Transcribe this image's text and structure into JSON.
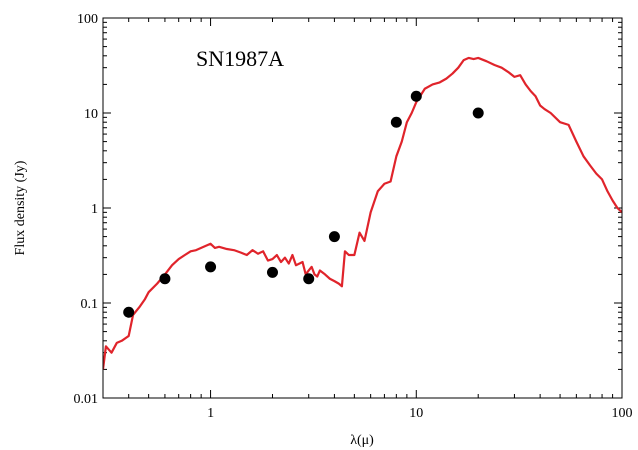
{
  "chart_data": {
    "type": "line",
    "title": "",
    "annotation": "SN1987A",
    "xlabel": "λ(μ)",
    "ylabel": "Flux density (Jy)",
    "xscale": "log",
    "yscale": "log",
    "xlim": [
      0.3,
      100
    ],
    "ylim": [
      0.01,
      100
    ],
    "x_ticks": [
      {
        "value": 1,
        "label": "1"
      },
      {
        "value": 10,
        "label": "10"
      },
      {
        "value": 100,
        "label": "100"
      }
    ],
    "y_ticks": [
      {
        "value": 0.01,
        "label": "0.01"
      },
      {
        "value": 0.1,
        "label": "0.1"
      },
      {
        "value": 1,
        "label": "1"
      },
      {
        "value": 10,
        "label": "10"
      },
      {
        "value": 100,
        "label": "100"
      }
    ],
    "grid": false,
    "legend": "none",
    "series": [
      {
        "kind": "line",
        "color": "#e0242b",
        "x": [
          0.3,
          0.31,
          0.33,
          0.35,
          0.37,
          0.4,
          0.42,
          0.45,
          0.48,
          0.5,
          0.55,
          0.6,
          0.65,
          0.7,
          0.75,
          0.8,
          0.85,
          0.9,
          0.95,
          1.0,
          1.05,
          1.1,
          1.2,
          1.3,
          1.4,
          1.5,
          1.6,
          1.7,
          1.8,
          1.9,
          2.0,
          2.1,
          2.2,
          2.3,
          2.4,
          2.5,
          2.6,
          2.7,
          2.8,
          2.9,
          3.0,
          3.1,
          3.2,
          3.3,
          3.4,
          3.6,
          3.8,
          4.0,
          4.2,
          4.35,
          4.5,
          4.7,
          5.0,
          5.3,
          5.6,
          6.0,
          6.5,
          7.0,
          7.5,
          8.0,
          8.5,
          9.0,
          9.5,
          10.0,
          11.0,
          12.0,
          13.0,
          14.0,
          15.0,
          16.0,
          17.0,
          18.0,
          19.0,
          20.0,
          22.0,
          24.0,
          26.0,
          28.0,
          30.0,
          32.0,
          34.0,
          36.0,
          38.0,
          40.0,
          42.0,
          45.0,
          50.0,
          55.0,
          60.0,
          65.0,
          70.0,
          75.0,
          80.0,
          85.0,
          90.0,
          95.0,
          100.0
        ],
        "y": [
          0.02,
          0.035,
          0.03,
          0.038,
          0.04,
          0.045,
          0.075,
          0.09,
          0.11,
          0.13,
          0.16,
          0.2,
          0.25,
          0.29,
          0.32,
          0.35,
          0.36,
          0.38,
          0.4,
          0.42,
          0.38,
          0.39,
          0.37,
          0.36,
          0.34,
          0.32,
          0.36,
          0.33,
          0.35,
          0.28,
          0.29,
          0.32,
          0.27,
          0.3,
          0.26,
          0.32,
          0.25,
          0.26,
          0.27,
          0.2,
          0.22,
          0.24,
          0.2,
          0.19,
          0.22,
          0.2,
          0.18,
          0.17,
          0.16,
          0.15,
          0.35,
          0.32,
          0.32,
          0.55,
          0.45,
          0.9,
          1.5,
          1.8,
          1.9,
          3.5,
          5.0,
          8.0,
          10.0,
          13.0,
          18.0,
          20.0,
          21.0,
          23.0,
          26.0,
          30.0,
          36.0,
          38.0,
          37.0,
          38.0,
          35.0,
          32.0,
          30.0,
          27.0,
          24.0,
          25.0,
          20.0,
          17.0,
          15.0,
          12.0,
          11.0,
          10.0,
          8.0,
          7.5,
          5.0,
          3.5,
          2.8,
          2.3,
          2.0,
          1.5,
          1.2,
          1.0,
          0.9
        ]
      },
      {
        "kind": "scatter",
        "color": "#000000",
        "x": [
          0.4,
          0.6,
          1.0,
          2.0,
          3.0,
          4.0,
          8.0,
          10.0,
          20.0
        ],
        "y": [
          0.08,
          0.18,
          0.24,
          0.21,
          0.18,
          0.5,
          8.0,
          15.0,
          10.0
        ]
      }
    ]
  }
}
